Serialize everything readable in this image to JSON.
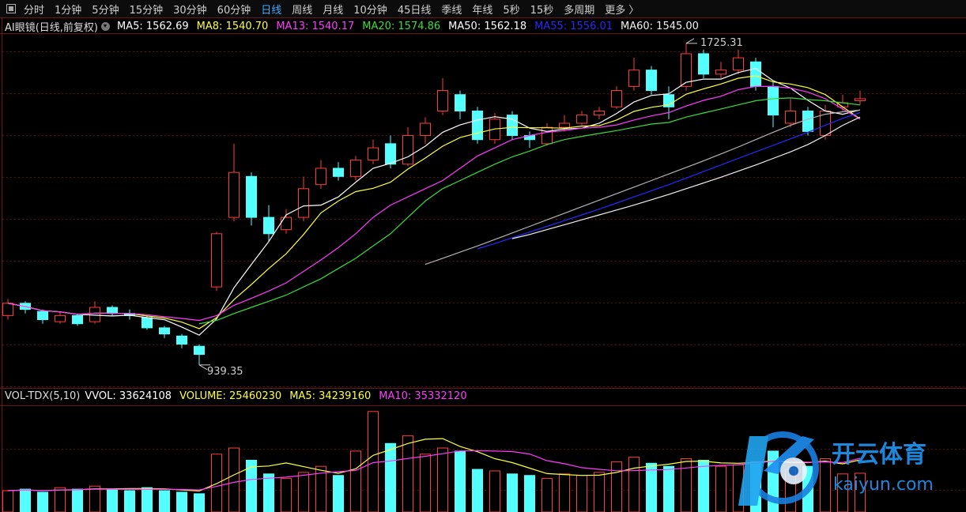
{
  "toolbar": {
    "tabs": [
      "分时",
      "1分钟",
      "5分钟",
      "15分钟",
      "30分钟",
      "60分钟",
      "日线",
      "周线",
      "月线",
      "10分钟",
      "45日线",
      "季线",
      "年线",
      "5秒",
      "15秒",
      "多周期",
      "更多 〉"
    ],
    "active": 6
  },
  "chart_data": [
    {
      "type": "candlestick",
      "title": "AI眼镜(日线,前复权)",
      "up_color": "#ff3c3c",
      "down_color": "#54ffff",
      "ylim": [
        885,
        1754
      ],
      "open": [
        1060,
        1090,
        1070,
        1045,
        1060,
        1045,
        1080,
        1065,
        1055,
        1030,
        1010,
        985,
        1130,
        1300,
        1400,
        1300,
        1270,
        1300,
        1380,
        1420,
        1400,
        1440,
        1480,
        1430,
        1500,
        1560,
        1600,
        1560,
        1490,
        1550,
        1500,
        1480,
        1520,
        1530,
        1550,
        1570,
        1620,
        1660,
        1600,
        1620,
        1700,
        1650,
        1660,
        1680,
        1620,
        1530,
        1560,
        1500,
        1570,
        1585
      ],
      "high": [
        1100,
        1095,
        1075,
        1070,
        1065,
        1095,
        1085,
        1075,
        1060,
        1035,
        1015,
        990,
        1265,
        1480,
        1410,
        1330,
        1320,
        1400,
        1440,
        1435,
        1450,
        1490,
        1500,
        1520,
        1545,
        1640,
        1610,
        1570,
        1555,
        1560,
        1510,
        1530,
        1550,
        1560,
        1570,
        1620,
        1690,
        1670,
        1620,
        1725.31,
        1710,
        1680,
        1710,
        1690,
        1630,
        1590,
        1570,
        1575,
        1600,
        1610
      ],
      "low": [
        1050,
        1065,
        1040,
        1040,
        1035,
        1040,
        1060,
        1050,
        1025,
        1005,
        980,
        939.35,
        1120,
        1290,
        1280,
        1240,
        1260,
        1290,
        1370,
        1390,
        1390,
        1430,
        1420,
        1425,
        1480,
        1550,
        1540,
        1480,
        1480,
        1490,
        1470,
        1475,
        1510,
        1525,
        1540,
        1565,
        1610,
        1600,
        1540,
        1610,
        1640,
        1640,
        1650,
        1610,
        1520,
        1520,
        1500,
        1490,
        1560,
        1575
      ],
      "close": [
        1090,
        1075,
        1050,
        1060,
        1040,
        1080,
        1065,
        1060,
        1030,
        1015,
        990,
        965,
        1260,
        1410,
        1300,
        1260,
        1300,
        1370,
        1420,
        1400,
        1440,
        1470,
        1430,
        1500,
        1530,
        1610,
        1560,
        1490,
        1540,
        1500,
        1490,
        1520,
        1530,
        1550,
        1560,
        1610,
        1660,
        1610,
        1570,
        1700,
        1650,
        1660,
        1690,
        1620,
        1550,
        1560,
        1510,
        1560,
        1580,
        1590
      ],
      "series": [
        {
          "name": "MA5: 1562.69",
          "color": "#ffffff",
          "values": [
            1090,
            1082,
            1072,
            1069,
            1063,
            1061,
            1059,
            1061,
            1055,
            1050,
            1032,
            1012,
            1052,
            1128,
            1185,
            1241,
            1306,
            1328,
            1330,
            1350,
            1386,
            1420,
            1432,
            1448,
            1474,
            1508,
            1526,
            1538,
            1546,
            1540,
            1518,
            1510,
            1516,
            1518,
            1530,
            1554,
            1582,
            1598,
            1602,
            1630,
            1638,
            1638,
            1654,
            1664,
            1634,
            1616,
            1586,
            1560,
            1552,
            1562.69
          ]
        },
        {
          "name": "MA8: 1540.70",
          "color": "#ffff3c",
          "values": [
            1090,
            1082,
            1072,
            1069,
            1063,
            1066,
            1066,
            1065,
            1059,
            1054,
            1044,
            1028,
            1055,
            1099,
            1136,
            1175,
            1211,
            1258,
            1311,
            1340,
            1363,
            1371,
            1386,
            1418,
            1445,
            1474,
            1495,
            1506,
            1516,
            1520,
            1519,
            1519,
            1518,
            1523,
            1524,
            1538,
            1559,
            1569,
            1575,
            1601,
            1614,
            1626,
            1640,
            1646,
            1631,
            1626,
            1617,
            1600,
            1570,
            1540.7
          ]
        },
        {
          "name": "MA13: 1540.17",
          "color": "#ff3cff",
          "values": [
            1090,
            1082,
            1072,
            1069,
            1063,
            1066,
            1066,
            1065,
            1062,
            1057,
            1053,
            1048,
            1060,
            1085,
            1102,
            1120,
            1140,
            1168,
            1196,
            1226,
            1260,
            1300,
            1330,
            1350,
            1370,
            1390,
            1420,
            1450,
            1470,
            1490,
            1500,
            1508,
            1512,
            1518,
            1520,
            1526,
            1538,
            1548,
            1556,
            1572,
            1586,
            1596,
            1612,
            1620,
            1620,
            1616,
            1606,
            1590,
            1565,
            1540.17
          ]
        },
        {
          "name": "MA20: 1574.86",
          "color": "#3cdc3c",
          "values": [
            null,
            null,
            null,
            null,
            null,
            null,
            null,
            null,
            null,
            null,
            null,
            1040,
            1048,
            1065,
            1080,
            1095,
            1110,
            1130,
            1150,
            1175,
            1200,
            1230,
            1260,
            1300,
            1340,
            1370,
            1390,
            1410,
            1430,
            1448,
            1462,
            1478,
            1490,
            1498,
            1505,
            1512,
            1520,
            1528,
            1532,
            1545,
            1555,
            1565,
            1575,
            1585,
            1590,
            1592,
            1588,
            1585,
            1580,
            1574.86
          ]
        },
        {
          "name": "MA50: 1562.18",
          "color": "#b4b4b4",
          "label_color": "#ffffff",
          "values": [
            null,
            null,
            null,
            null,
            null,
            null,
            null,
            null,
            null,
            null,
            null,
            null,
            null,
            null,
            null,
            null,
            null,
            null,
            null,
            null,
            null,
            null,
            null,
            null,
            1185,
            1200,
            1215,
            1230,
            1246,
            1262,
            1278,
            1294,
            1310,
            1326,
            1342,
            1358,
            1374,
            1390,
            1406,
            1422,
            1438,
            1455,
            1472,
            1490,
            1508,
            1525,
            1540,
            1552,
            1558,
            1562.18
          ]
        },
        {
          "name": "MA55: 1556.01",
          "color": "#2828ff",
          "values": [
            null,
            null,
            null,
            null,
            null,
            null,
            null,
            null,
            null,
            null,
            null,
            null,
            null,
            null,
            null,
            null,
            null,
            null,
            null,
            null,
            null,
            null,
            null,
            null,
            null,
            null,
            null,
            1223,
            1236,
            1250,
            1264,
            1278,
            1292,
            1306,
            1320,
            1335,
            1350,
            1365,
            1380,
            1396,
            1412,
            1428,
            1444,
            1460,
            1476,
            1492,
            1508,
            1525,
            1542,
            1556.01
          ]
        },
        {
          "name": "MA60: 1545.00",
          "color": "#f0f0f0",
          "values": [
            null,
            null,
            null,
            null,
            null,
            null,
            null,
            null,
            null,
            null,
            null,
            null,
            null,
            null,
            null,
            null,
            null,
            null,
            null,
            null,
            null,
            null,
            null,
            null,
            null,
            null,
            null,
            null,
            null,
            1248,
            1258,
            1270,
            1282,
            1294,
            1306,
            1318,
            1330,
            1343,
            1356,
            1370,
            1384,
            1398,
            1413,
            1428,
            1444,
            1460,
            1478,
            1500,
            1525,
            1545
          ]
        }
      ]
    },
    {
      "type": "bar",
      "title": "VOL-TDX(5,10)",
      "info": "VVOL: 33624108",
      "ylim": [
        0,
        69000000
      ],
      "series": [
        {
          "name": "VOLUME: 25460230",
          "color": "#ffff3c",
          "values": [
            14000000,
            15000000,
            13000000,
            16000000,
            15000000,
            17000000,
            15000000,
            14000000,
            16000000,
            14000000,
            13000000,
            12000000,
            38000000,
            42000000,
            34000000,
            25000000,
            22000000,
            26000000,
            30000000,
            24000000,
            40000000,
            66000000,
            45000000,
            50000000,
            38000000,
            42000000,
            40000000,
            28000000,
            27000000,
            25000000,
            24000000,
            22000000,
            25000000,
            24000000,
            26000000,
            33000000,
            36000000,
            32000000,
            30000000,
            35000000,
            34000000,
            30000000,
            31000000,
            33000000,
            40000000,
            28000000,
            30000000,
            35000000,
            25000000,
            25460230
          ]
        },
        {
          "name": "MA5: 34239160",
          "color": "#ffff3c",
          "values": [
            14000000,
            14500000,
            14000000,
            14500000,
            14600000,
            15200000,
            15200000,
            15400000,
            15400000,
            15200000,
            14400000,
            13800000,
            18600000,
            24400000,
            29600000,
            30200000,
            32200000,
            29800000,
            27400000,
            25400000,
            28400000,
            37200000,
            41000000,
            45000000,
            47800000,
            48200000,
            43000000,
            39600000,
            35000000,
            32400000,
            28800000,
            25200000,
            24600000,
            24000000,
            24200000,
            26000000,
            28800000,
            30200000,
            31400000,
            33200000,
            33400000,
            32200000,
            32000000,
            32600000,
            33600000,
            32400000,
            32400000,
            33400000,
            31600000,
            34239160
          ]
        },
        {
          "name": "MA10: 35332120",
          "color": "#ff3cff",
          "values": [
            14000000,
            14500000,
            14000000,
            14500000,
            14600000,
            15000000,
            15000000,
            14900000,
            15000000,
            14900000,
            14800000,
            14500000,
            16800000,
            19500000,
            21400000,
            22200000,
            22900000,
            24100000,
            25500000,
            26500000,
            27300000,
            32400000,
            33500000,
            35200000,
            36600000,
            38300000,
            40100000,
            40300000,
            40000000,
            39700000,
            38100000,
            33700000,
            31700000,
            29100000,
            28000000,
            27100000,
            27200000,
            27600000,
            27900000,
            28900000,
            30000000,
            30600000,
            31100000,
            32000000,
            33400000,
            33300000,
            32700000,
            32900000,
            32400000,
            35332120
          ]
        }
      ]
    }
  ],
  "watermark": {
    "title": "开云体育",
    "site": "kaiyun.com"
  }
}
